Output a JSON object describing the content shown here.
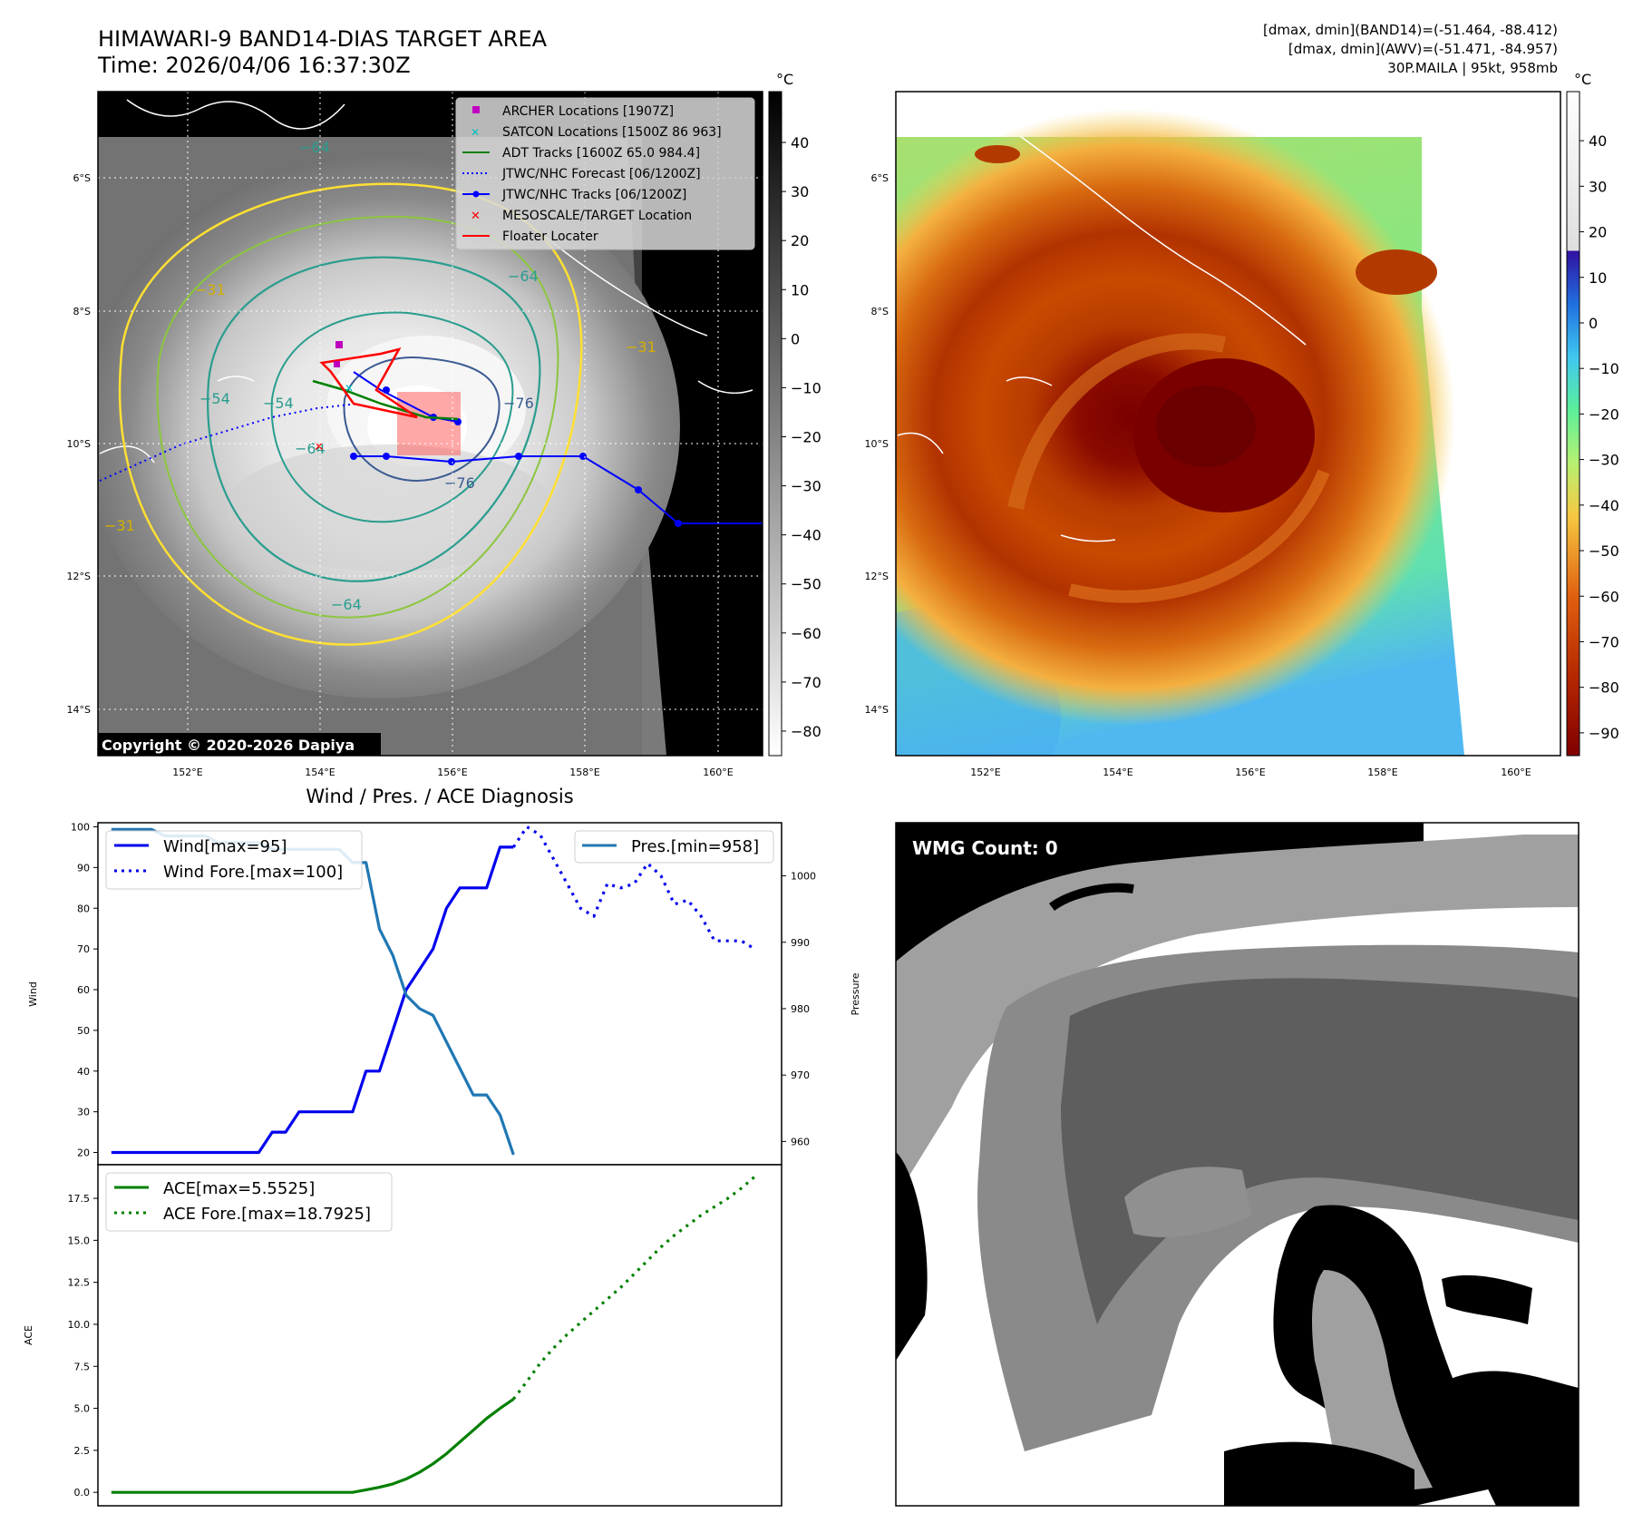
{
  "header": {
    "title_line1": "HIMAWARI-9 BAND14-DIAS TARGET AREA",
    "title_line2": "Time: 2026/04/06 16:37:30Z",
    "info_line1": "[dmax, dmin](BAND14)=(-51.464, -88.412)",
    "info_line2": "[dmax, dmin](AWV)=(-51.471, -84.957)",
    "info_line3": "30P.MAILA | 95kt, 958mb"
  },
  "colors": {
    "wind": "#0000ee",
    "pressure": "#1f77b4",
    "ace": "#008000",
    "jtwc": "#0000ff",
    "archer": "#bf00bf",
    "satcon": "#00bfbf",
    "adt": "#008000",
    "marker": "#ff0000",
    "contour_yellow": "#ffe033",
    "contour_teal": "#2a9d8f"
  },
  "panel_ir": {
    "unit": "°C",
    "lat_labels": [
      "6°S",
      "8°S",
      "10°S",
      "12°S",
      "14°S"
    ],
    "lon_labels": [
      "152°E",
      "154°E",
      "156°E",
      "158°E",
      "160°E"
    ],
    "colorbar_ticks": [
      "40",
      "30",
      "20",
      "10",
      "0",
      "−10",
      "−20",
      "−30",
      "−40",
      "−50",
      "−60",
      "−70",
      "−80"
    ],
    "contour_labels": [
      "−64",
      "−31",
      "−54",
      "−54",
      "−64",
      "−76",
      "−31",
      "−64",
      "−31",
      "−64",
      "−76"
    ],
    "legend": [
      "ARCHER Locations [1907Z]",
      "SATCON Locations [1500Z 86 963]",
      "ADT Tracks [1600Z 65.0 984.4]",
      "JTWC/NHC Forecast [06/1200Z]",
      "JTWC/NHC Tracks [06/1200Z]",
      "MESOSCALE/TARGET Location",
      "Floater Locater"
    ],
    "copyright": "Copyright © 2020-2026 Dapiya"
  },
  "panel_awv": {
    "unit": "°C",
    "lat_labels": [
      "6°S",
      "8°S",
      "10°S",
      "12°S",
      "14°S"
    ],
    "lon_labels": [
      "152°E",
      "154°E",
      "156°E",
      "158°E",
      "160°E"
    ],
    "colorbar_ticks": [
      "40",
      "30",
      "20",
      "10",
      "0",
      "−10",
      "−20",
      "−30",
      "−40",
      "−50",
      "−60",
      "−70",
      "−80",
      "−90"
    ]
  },
  "panel_wmg": {
    "label": "WMG Count: 0"
  },
  "diagnosis_title": "Wind / Pres. / ACE Diagnosis",
  "chart_data": [
    {
      "type": "line",
      "title": "Wind / Pres. / ACE Diagnosis",
      "xlabel": "",
      "ylabel": "Wind",
      "ylabel_right": "Pressure",
      "ylim": [
        17,
        101
      ],
      "ylim_right": [
        956.5,
        1008.0
      ],
      "yticks": [
        20,
        30,
        40,
        50,
        60,
        70,
        80,
        90,
        100
      ],
      "yticks_right": [
        960,
        970,
        980,
        990,
        1000
      ],
      "series": [
        {
          "name": "Wind[max=95]",
          "style": "solid",
          "x": [
            0,
            1,
            2,
            3,
            4,
            5,
            6,
            7,
            8,
            9,
            10,
            11,
            12,
            13,
            14,
            15,
            16,
            17,
            18,
            19,
            20,
            21,
            22,
            23,
            24,
            25,
            26,
            27,
            28,
            29,
            30
          ],
          "values": [
            20,
            20,
            20,
            20,
            20,
            20,
            20,
            20,
            20,
            20,
            20,
            20,
            25,
            25,
            30,
            30,
            30,
            30,
            30,
            40,
            40,
            50,
            60,
            65,
            70,
            80,
            85,
            85,
            85,
            95,
            95
          ]
        },
        {
          "name": "Wind Fore.[max=100]",
          "style": "dotted",
          "x": [
            30,
            31,
            32,
            33,
            34,
            35,
            36,
            37,
            38,
            39,
            40,
            41,
            42,
            43,
            44,
            45,
            46,
            47,
            48
          ],
          "values": [
            95,
            100,
            98,
            92,
            86,
            80,
            78,
            86,
            85,
            86,
            91,
            88,
            81,
            82,
            78,
            72,
            72,
            72,
            70
          ]
        },
        {
          "name": "Pres.[min=958]",
          "style": "solid",
          "axis": "right",
          "x": [
            0,
            1,
            2,
            3,
            4,
            5,
            6,
            7,
            8,
            9,
            10,
            11,
            12,
            13,
            14,
            15,
            16,
            17,
            18,
            19,
            20,
            21,
            22,
            23,
            24,
            25,
            26,
            27,
            28,
            29,
            30
          ],
          "values": [
            1007,
            1007,
            1007,
            1007,
            1006,
            1006,
            1006,
            1006,
            1005,
            1005,
            1005,
            1005,
            1004,
            1004,
            1004,
            1004,
            1004,
            1004,
            1002,
            1002,
            992,
            988,
            982,
            980,
            979,
            975,
            971,
            967,
            967,
            964,
            958
          ]
        }
      ]
    },
    {
      "type": "line",
      "xlabel": "",
      "ylabel": "ACE",
      "ylim": [
        -0.8,
        19.5
      ],
      "yticks": [
        0.0,
        2.5,
        5.0,
        7.5,
        10.0,
        12.5,
        15.0,
        17.5
      ],
      "series": [
        {
          "name": "ACE[max=5.5525]",
          "style": "solid",
          "x": [
            0,
            2,
            4,
            6,
            8,
            10,
            12,
            14,
            16,
            18,
            19,
            20,
            21,
            22,
            23,
            24,
            25,
            26,
            27,
            28,
            29,
            30
          ],
          "values": [
            0,
            0,
            0,
            0,
            0,
            0,
            0,
            0,
            0,
            0,
            0.15,
            0.3,
            0.5,
            0.8,
            1.2,
            1.7,
            2.3,
            3.0,
            3.7,
            4.4,
            5.0,
            5.55
          ]
        },
        {
          "name": "ACE Fore.[max=18.7925]",
          "style": "dotted",
          "x": [
            30,
            31,
            32,
            33,
            34,
            35,
            36,
            37,
            38,
            39,
            40,
            41,
            42,
            43,
            44,
            45,
            46,
            47,
            48
          ],
          "values": [
            5.55,
            6.6,
            7.7,
            8.6,
            9.4,
            10.1,
            10.8,
            11.5,
            12.2,
            13.0,
            13.8,
            14.6,
            15.3,
            15.9,
            16.5,
            17.0,
            17.5,
            18.1,
            18.79
          ]
        }
      ]
    }
  ]
}
